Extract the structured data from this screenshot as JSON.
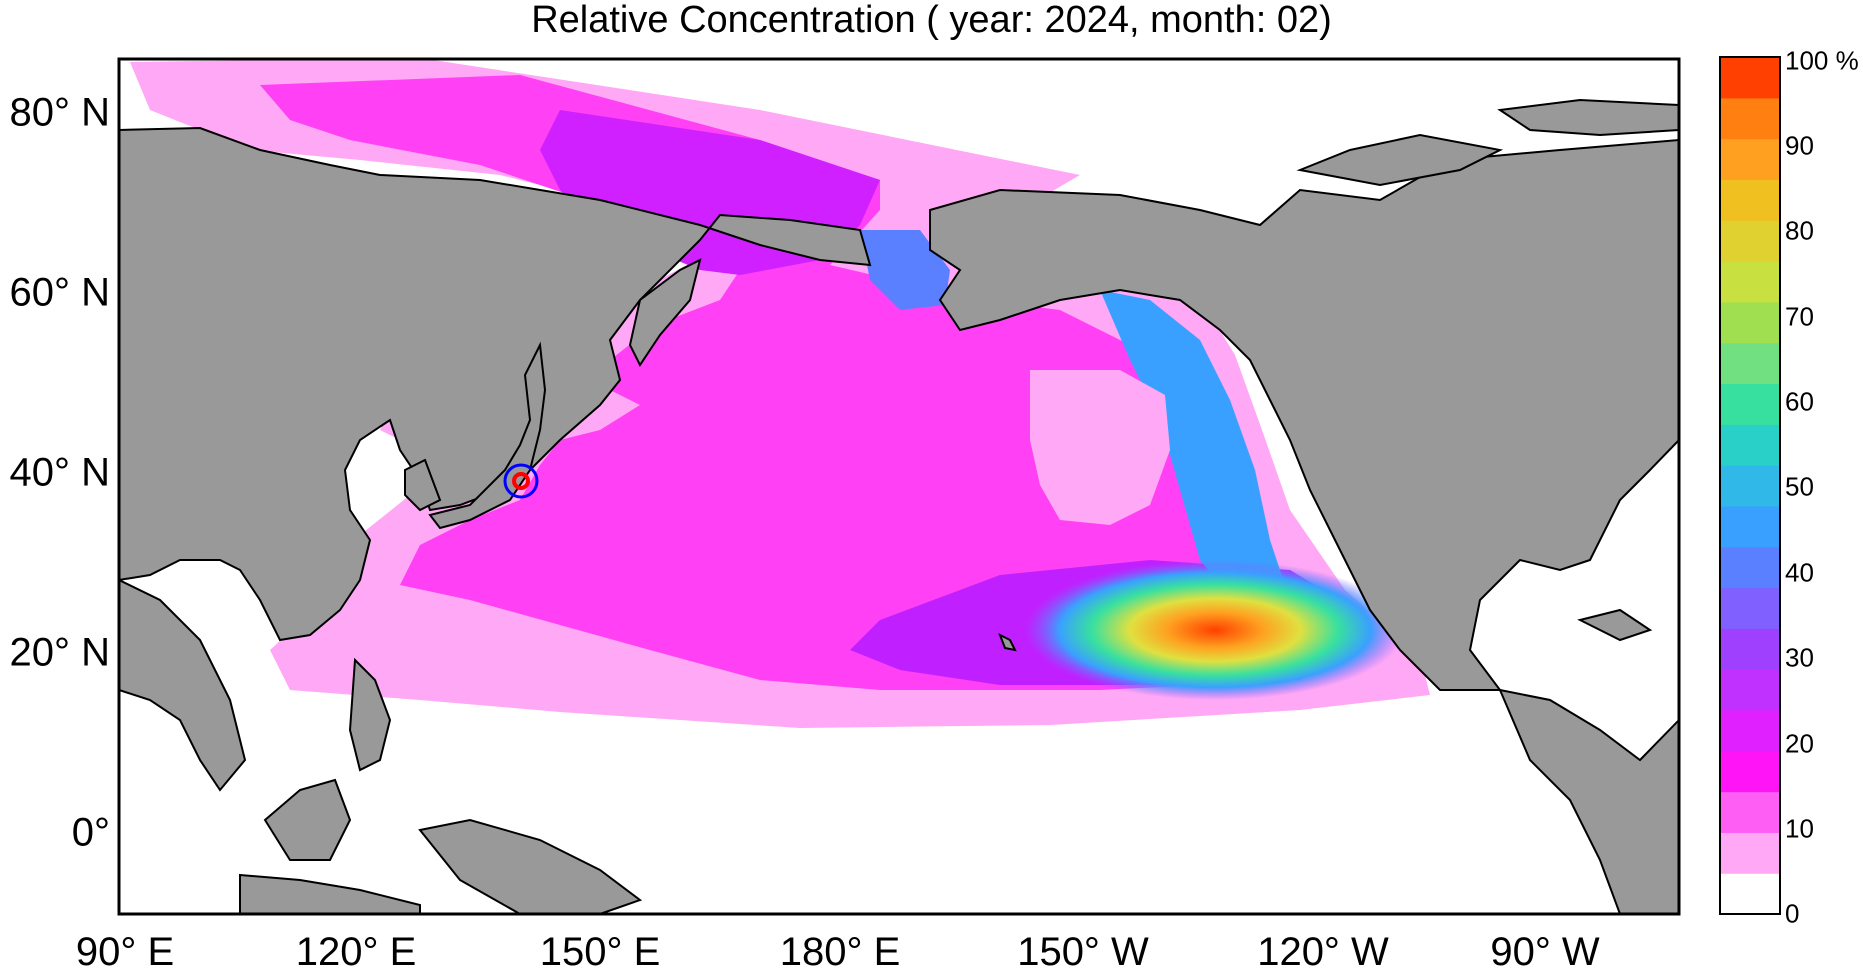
{
  "title": "Relative Concentration ( year: 2024, month: 02)",
  "map": {
    "lat_labels": [
      "80° N",
      "60° N",
      "40° N",
      "20° N",
      "0°"
    ],
    "lon_labels": [
      "90° E",
      "120° E",
      "150° E",
      "180° E",
      "150° W",
      "120° W",
      "90° W"
    ],
    "marker": {
      "name": "release site",
      "lon": 141,
      "lat": 37.4
    },
    "land_color": "#999999",
    "ocean_color": "#ffffff"
  },
  "colorbar": {
    "labels": [
      "100 %",
      "90",
      "80",
      "70",
      "60",
      "50",
      "40",
      "30",
      "20",
      "10",
      "0"
    ],
    "colors_bottom_to_top": [
      "#ffffff",
      "#ffa8f5",
      "#ff5ef5",
      "#ff14f8",
      "#e020ff",
      "#c030ff",
      "#a040ff",
      "#8060ff",
      "#5a80ff",
      "#3aa0ff",
      "#30b8e8",
      "#28d0c8",
      "#38e0a0",
      "#70e080",
      "#a0e050",
      "#c8e040",
      "#e0d030",
      "#f0c020",
      "#ffa020",
      "#ff8010",
      "#ff4000"
    ]
  }
}
